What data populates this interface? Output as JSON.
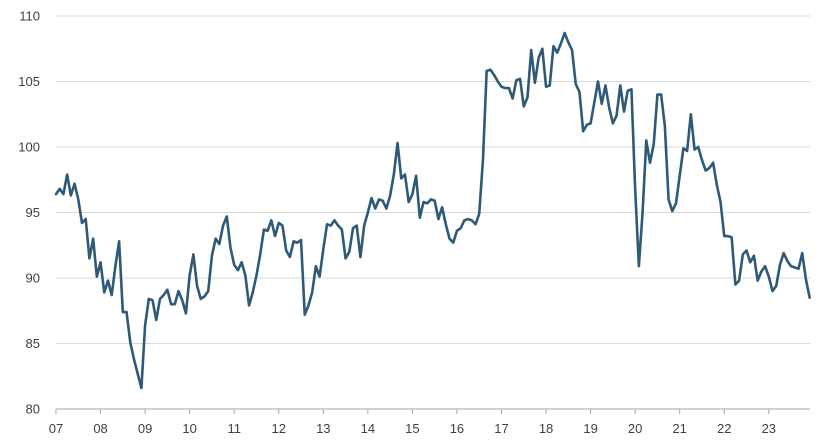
{
  "chart_data": {
    "type": "line",
    "title": "",
    "xlabel": "",
    "ylabel": "",
    "ylim": [
      80,
      110
    ],
    "y_ticks": [
      "80",
      "85",
      "90",
      "95",
      "100",
      "105",
      "110"
    ],
    "x_ticks": [
      "07",
      "08",
      "09",
      "10",
      "11",
      "12",
      "13",
      "14",
      "15",
      "16",
      "17",
      "18",
      "19",
      "20",
      "21",
      "22",
      "23"
    ],
    "grid": "horizontal",
    "legend": "none",
    "x_start_year": 2007,
    "x": [
      "2007-01",
      "2007-02",
      "2007-03",
      "2007-04",
      "2007-05",
      "2007-06",
      "2007-07",
      "2007-08",
      "2007-09",
      "2007-10",
      "2007-11",
      "2007-12",
      "2008-01",
      "2008-02",
      "2008-03",
      "2008-04",
      "2008-05",
      "2008-06",
      "2008-07",
      "2008-08",
      "2008-09",
      "2008-10",
      "2008-11",
      "2008-12",
      "2009-01",
      "2009-02",
      "2009-03",
      "2009-04",
      "2009-05",
      "2009-06",
      "2009-07",
      "2009-08",
      "2009-09",
      "2009-10",
      "2009-11",
      "2009-12",
      "2010-01",
      "2010-02",
      "2010-03",
      "2010-04",
      "2010-05",
      "2010-06",
      "2010-07",
      "2010-08",
      "2010-09",
      "2010-10",
      "2010-11",
      "2010-12",
      "2011-01",
      "2011-02",
      "2011-03",
      "2011-04",
      "2011-05",
      "2011-06",
      "2011-07",
      "2011-08",
      "2011-09",
      "2011-10",
      "2011-11",
      "2011-12",
      "2012-01",
      "2012-02",
      "2012-03",
      "2012-04",
      "2012-05",
      "2012-06",
      "2012-07",
      "2012-08",
      "2012-09",
      "2012-10",
      "2012-11",
      "2012-12",
      "2013-01",
      "2013-02",
      "2013-03",
      "2013-04",
      "2013-05",
      "2013-06",
      "2013-07",
      "2013-08",
      "2013-09",
      "2013-10",
      "2013-11",
      "2013-12",
      "2014-01",
      "2014-02",
      "2014-03",
      "2014-04",
      "2014-05",
      "2014-06",
      "2014-07",
      "2014-08",
      "2014-09",
      "2014-10",
      "2014-11",
      "2014-12",
      "2015-01",
      "2015-02",
      "2015-03",
      "2015-04",
      "2015-05",
      "2015-06",
      "2015-07",
      "2015-08",
      "2015-09",
      "2015-10",
      "2015-11",
      "2015-12",
      "2016-01",
      "2016-02",
      "2016-03",
      "2016-04",
      "2016-05",
      "2016-06",
      "2016-07",
      "2016-08",
      "2016-09",
      "2016-10",
      "2016-11",
      "2016-12",
      "2017-01",
      "2017-02",
      "2017-03",
      "2017-04",
      "2017-05",
      "2017-06",
      "2017-07",
      "2017-08",
      "2017-09",
      "2017-10",
      "2017-11",
      "2017-12",
      "2018-01",
      "2018-02",
      "2018-03",
      "2018-04",
      "2018-05",
      "2018-06",
      "2018-07",
      "2018-08",
      "2018-09",
      "2018-10",
      "2018-11",
      "2018-12",
      "2019-01",
      "2019-02",
      "2019-03",
      "2019-04",
      "2019-05",
      "2019-06",
      "2019-07",
      "2019-08",
      "2019-09",
      "2019-10",
      "2019-11",
      "2019-12",
      "2020-01",
      "2020-02",
      "2020-03",
      "2020-04",
      "2020-05",
      "2020-06",
      "2020-07",
      "2020-08",
      "2020-09",
      "2020-10",
      "2020-11",
      "2020-12",
      "2021-01",
      "2021-02",
      "2021-03",
      "2021-04",
      "2021-05",
      "2021-06",
      "2021-07",
      "2021-08",
      "2021-09",
      "2021-10",
      "2021-11",
      "2021-12",
      "2022-01",
      "2022-02",
      "2022-03",
      "2022-04",
      "2022-05",
      "2022-06",
      "2022-07",
      "2022-08",
      "2022-09",
      "2022-10",
      "2022-11",
      "2022-12",
      "2023-01",
      "2023-02",
      "2023-03",
      "2023-04",
      "2023-05",
      "2023-06",
      "2023-07",
      "2023-08",
      "2023-09",
      "2023-10",
      "2023-11",
      "2023-12"
    ],
    "series": [
      {
        "color": "#2e5a78",
        "values": [
          96.4,
          96.8,
          96.4,
          97.9,
          96.3,
          97.2,
          96.0,
          94.2,
          94.5,
          91.5,
          93.0,
          90.1,
          91.2,
          88.9,
          89.8,
          88.7,
          90.9,
          92.8,
          87.4,
          87.4,
          85.1,
          83.8,
          82.7,
          81.6,
          86.4,
          88.4,
          88.3,
          86.8,
          88.4,
          88.7,
          89.1,
          88.0,
          88.0,
          89.0,
          88.3,
          87.3,
          90.2,
          91.8,
          89.4,
          88.4,
          88.6,
          89.0,
          91.7,
          93.0,
          92.6,
          94.0,
          94.7,
          92.3,
          91.0,
          90.6,
          91.2,
          90.2,
          87.9,
          88.9,
          90.2,
          91.8,
          93.7,
          93.6,
          94.4,
          93.2,
          94.2,
          94.0,
          92.1,
          91.6,
          92.8,
          92.7,
          92.9,
          87.2,
          87.9,
          88.9,
          90.9,
          90.1,
          92.2,
          94.1,
          94.0,
          94.4,
          94.0,
          93.7,
          91.5,
          92.0,
          93.8,
          94.0,
          91.6,
          94.0,
          95.0,
          96.1,
          95.3,
          96.0,
          95.9,
          95.3,
          96.3,
          97.9,
          100.3,
          97.6,
          97.9,
          95.8,
          96.4,
          97.8,
          94.6,
          95.8,
          95.7,
          96.0,
          95.9,
          94.5,
          95.4,
          94.1,
          93.0,
          92.7,
          93.6,
          93.8,
          94.4,
          94.5,
          94.4,
          94.1,
          94.9,
          99.0,
          105.8,
          105.9,
          105.5,
          105.0,
          104.6,
          104.5,
          104.5,
          103.7,
          105.1,
          105.2,
          103.1,
          103.8,
          107.4,
          104.9,
          106.8,
          107.5,
          104.6,
          104.7,
          107.7,
          107.2,
          107.9,
          108.7,
          108.0,
          107.4,
          104.8,
          104.2,
          101.2,
          101.7,
          101.8,
          103.4,
          105.0,
          103.3,
          104.7,
          103.0,
          101.8,
          102.4,
          104.7,
          102.7,
          104.3,
          104.4,
          96.8,
          90.9,
          95.0,
          100.5,
          98.8,
          100.2,
          104.0,
          104.0,
          101.6,
          96.0,
          95.1,
          95.7,
          97.8,
          99.9,
          99.7,
          102.5,
          99.8,
          100.0,
          99.0,
          98.2,
          98.4,
          98.8,
          97.1,
          95.8,
          93.2,
          93.2,
          93.1,
          89.5,
          89.8,
          91.8,
          92.1,
          91.2,
          91.7,
          89.8,
          90.5,
          90.9,
          90.1,
          89.0,
          89.4,
          91.0,
          91.9,
          91.3,
          90.9,
          90.8,
          90.7,
          91.9,
          89.9,
          88.5
        ]
      }
    ]
  }
}
